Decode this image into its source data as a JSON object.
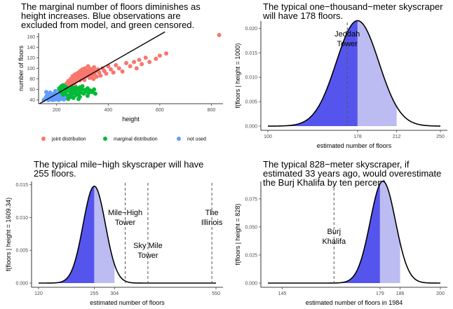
{
  "chart_data": [
    {
      "type": "scatter",
      "title": [
        "The marginal number of floors diminishes as",
        "height increases. Blue observations are",
        "excluded from model, and green censored."
      ],
      "xlabel": "height",
      "ylabel": "number of floors",
      "xlim": [
        130,
        845
      ],
      "ylim": [
        33,
        167
      ],
      "x_ticks": [
        200,
        400,
        600,
        800
      ],
      "y_ticks": [
        40,
        60,
        80,
        100,
        120,
        140,
        160
      ],
      "legend": {
        "position": "bottom",
        "entries": [
          {
            "label": "joint distribution",
            "color": "#f8766d"
          },
          {
            "label": "marginal distribution",
            "color": "#00ba38"
          },
          {
            "label": "not used",
            "color": "#619cff"
          }
        ]
      },
      "fit_line": {
        "x": [
          130,
          620
        ],
        "y": [
          32,
          169
        ]
      },
      "series": [
        {
          "label_ref": 2,
          "color": "#619cff",
          "points": [
            [
              150,
              40
            ],
            [
              155,
              42
            ],
            [
              158,
              44
            ],
            [
              160,
              46
            ],
            [
              162,
              48
            ],
            [
              165,
              42
            ],
            [
              168,
              40
            ],
            [
              170,
              45
            ],
            [
              172,
              50
            ],
            [
              175,
              41
            ],
            [
              178,
              47
            ],
            [
              180,
              43
            ],
            [
              182,
              49
            ],
            [
              185,
              40
            ],
            [
              188,
              44
            ],
            [
              190,
              52
            ],
            [
              192,
              46
            ],
            [
              195,
              41
            ],
            [
              198,
              48
            ],
            [
              200,
              43
            ],
            [
              202,
              50
            ],
            [
              205,
              45
            ],
            [
              208,
              40
            ],
            [
              210,
              47
            ],
            [
              212,
              53
            ],
            [
              215,
              42
            ],
            [
              218,
              49
            ],
            [
              220,
              44
            ],
            [
              222,
              46
            ],
            [
              225,
              51
            ],
            [
              228,
              41
            ],
            [
              230,
              48
            ],
            [
              232,
              43
            ],
            [
              235,
              55
            ],
            [
              238,
              45
            ],
            [
              240,
              47
            ],
            [
              160,
              55
            ],
            [
              175,
              54
            ],
            [
              195,
              57
            ],
            [
              210,
              58
            ]
          ]
        },
        {
          "label_ref": 1,
          "color": "#00ba38",
          "points": [
            [
              210,
              62
            ],
            [
              215,
              55
            ],
            [
              218,
              66
            ],
            [
              222,
              60
            ],
            [
              225,
              68
            ],
            [
              228,
              57
            ],
            [
              230,
              63
            ],
            [
              235,
              52
            ],
            [
              238,
              70
            ],
            [
              240,
              58
            ],
            [
              242,
              65
            ],
            [
              245,
              48
            ],
            [
              248,
              61
            ],
            [
              250,
              72
            ],
            [
              252,
              55
            ],
            [
              255,
              67
            ],
            [
              258,
              50
            ],
            [
              260,
              63
            ],
            [
              262,
              58
            ],
            [
              265,
              69
            ],
            [
              268,
              53
            ],
            [
              270,
              60
            ],
            [
              272,
              66
            ],
            [
              275,
              49
            ],
            [
              278,
              56
            ],
            [
              280,
              62
            ],
            [
              285,
              51
            ],
            [
              288,
              58
            ],
            [
              290,
              64
            ],
            [
              295,
              54
            ],
            [
              298,
              60
            ],
            [
              300,
              66
            ],
            [
              305,
              52
            ],
            [
              310,
              59
            ],
            [
              315,
              56
            ],
            [
              320,
              62
            ],
            [
              325,
              54
            ],
            [
              330,
              58
            ],
            [
              338,
              55
            ],
            [
              345,
              60
            ],
            [
              245,
              42
            ],
            [
              265,
              44
            ],
            [
              290,
              46
            ],
            [
              320,
              48
            ],
            [
              350,
              52
            ],
            [
              225,
              50
            ],
            [
              255,
              46
            ],
            [
              285,
              42
            ]
          ]
        },
        {
          "label_ref": 0,
          "color": "#f8766d",
          "points": [
            [
              240,
              72
            ],
            [
              245,
              76
            ],
            [
              250,
              68
            ],
            [
              255,
              80
            ],
            [
              258,
              74
            ],
            [
              262,
              85
            ],
            [
              265,
              78
            ],
            [
              268,
              70
            ],
            [
              270,
              88
            ],
            [
              272,
              82
            ],
            [
              275,
              75
            ],
            [
              278,
              90
            ],
            [
              280,
              86
            ],
            [
              282,
              79
            ],
            [
              285,
              92
            ],
            [
              288,
              84
            ],
            [
              290,
              77
            ],
            [
              292,
              95
            ],
            [
              295,
              89
            ],
            [
              298,
              81
            ],
            [
              300,
              98
            ],
            [
              302,
              91
            ],
            [
              305,
              86
            ],
            [
              308,
              78
            ],
            [
              310,
              100
            ],
            [
              312,
              93
            ],
            [
              315,
              85
            ],
            [
              318,
              96
            ],
            [
              320,
              88
            ],
            [
              322,
              104
            ],
            [
              325,
              94
            ],
            [
              328,
              82
            ],
            [
              330,
              99
            ],
            [
              332,
              90
            ],
            [
              335,
              86
            ],
            [
              338,
              97
            ],
            [
              340,
              92
            ],
            [
              343,
              80
            ],
            [
              345,
              102
            ],
            [
              348,
              88
            ],
            [
              352,
              95
            ],
            [
              355,
              84
            ],
            [
              360,
              98
            ],
            [
              365,
              92
            ],
            [
              370,
              86
            ],
            [
              378,
              100
            ],
            [
              385,
              95
            ],
            [
              392,
              90
            ],
            [
              400,
              104
            ],
            [
              410,
              98
            ],
            [
              420,
              92
            ],
            [
              430,
              106
            ],
            [
              442,
              100
            ],
            [
              455,
              94
            ],
            [
              470,
              110
            ],
            [
              485,
              104
            ],
            [
              500,
              112
            ],
            [
              510,
              100
            ],
            [
              520,
              116
            ],
            [
              530,
              108
            ],
            [
              545,
              120
            ],
            [
              560,
              112
            ],
            [
              585,
              118
            ],
            [
              600,
              124
            ],
            [
              625,
              128
            ],
            [
              830,
              163
            ]
          ]
        }
      ]
    },
    {
      "type": "area",
      "title": [
        "The typical one−thousand−meter skyscraper",
        "will have 178 floors."
      ],
      "xlabel": "estimated number of floors",
      "ylabel": "f(floors | height = 1000)",
      "xlim": [
        100,
        250
      ],
      "ylim": [
        0,
        0.0215
      ],
      "x_ticks": [
        100,
        178,
        212,
        250
      ],
      "y_ticks": [
        0.0,
        0.005,
        0.01,
        0.015,
        0.02
      ],
      "y_tick_labels": [
        "0.000",
        "0.005",
        "0.010",
        "0.015",
        "0.020"
      ],
      "density": {
        "mean": 178,
        "sd": 18.5
      },
      "shade_dark": [
        100,
        178
      ],
      "shade_light": [
        178,
        212
      ],
      "refs": [
        {
          "x": 169,
          "label": [
            "Jeddah",
            "Tower"
          ]
        }
      ]
    },
    {
      "type": "area",
      "title": [
        "The typical mile−high skyscraper will have",
        "255 floors."
      ],
      "xlabel": "estimated number of floors",
      "ylabel": "f(floors | height = 1609.34)",
      "xlim": [
        120,
        550
      ],
      "ylim": [
        0,
        0.0155
      ],
      "x_ticks": [
        120,
        255,
        304,
        550
      ],
      "y_ticks": [
        0.0,
        0.005,
        0.01,
        0.015
      ],
      "y_tick_labels": [
        "0.000",
        "0.005",
        "0.010",
        "0.015"
      ],
      "density": {
        "mean": 255,
        "sd": 27
      },
      "shade_dark": [
        120,
        255
      ],
      "shade_light": [
        255,
        304
      ],
      "refs": [
        {
          "x": 330,
          "label": [
            "Mile−High",
            "Tower"
          ]
        },
        {
          "x": 385,
          "label": [
            "Sky Mile",
            "Tower"
          ]
        },
        {
          "x": 540,
          "label": [
            "The",
            "Illinois"
          ]
        }
      ]
    },
    {
      "type": "area",
      "title": [
        "The typical 828−meter skyscraper, if",
        "estimated 33 years ago, would overestimate",
        "the Burj Khalifa by ten percent."
      ],
      "xlabel": "estimated number of floors in 1984",
      "ylabel": "f(floors | height = 828)",
      "xlim": [
        140,
        200
      ],
      "ylim": [
        0,
        0.0905
      ],
      "x_ticks": [
        145,
        179,
        186,
        200
      ],
      "y_ticks": [
        0.0,
        0.025,
        0.05,
        0.075
      ],
      "y_tick_labels": [
        "0.000",
        "0.025",
        "0.050",
        "0.075"
      ],
      "density": {
        "mean": 180,
        "sd": 4.4
      },
      "shade_dark": [
        140,
        179
      ],
      "shade_light": [
        179,
        186
      ],
      "refs": [
        {
          "x": 163,
          "label": [
            "Burj",
            "Khalifa"
          ]
        }
      ]
    }
  ]
}
